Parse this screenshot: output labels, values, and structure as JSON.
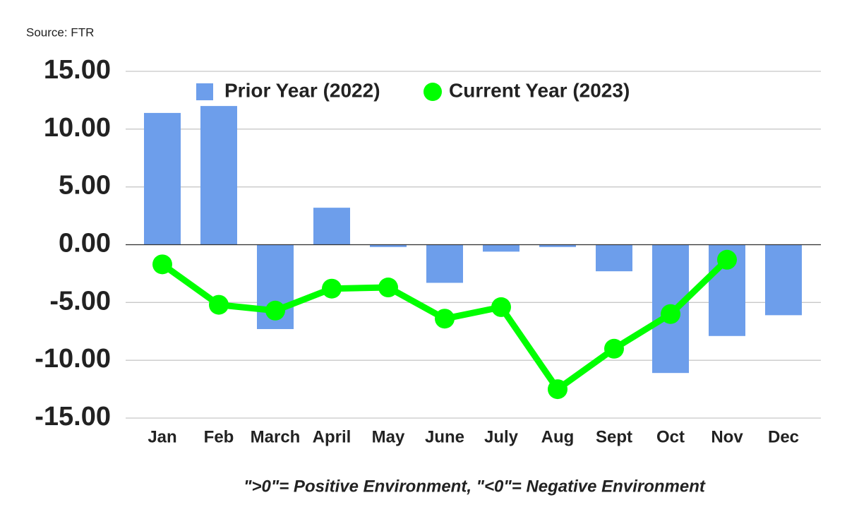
{
  "chart_data": {
    "type": "combo",
    "source": "Source: FTR",
    "note": "\">0\"= Positive Environment, \"<0\"= Negative Environment",
    "categories": [
      "Jan",
      "Feb",
      "March",
      "April",
      "May",
      "June",
      "July",
      "Aug",
      "Sept",
      "Oct",
      "Nov",
      "Dec"
    ],
    "series": [
      {
        "name": "Prior Year (2022)",
        "type": "bar",
        "color": "#6d9eeb",
        "values": [
          11.4,
          12.0,
          -7.3,
          3.2,
          -0.2,
          -3.3,
          -0.6,
          -0.2,
          -2.3,
          -11.1,
          -7.9,
          -6.1
        ]
      },
      {
        "name": "Current Year (2023)",
        "type": "line",
        "color": "#00ff00",
        "values": [
          -1.7,
          -5.2,
          -5.7,
          -3.8,
          -3.7,
          -6.4,
          -5.4,
          -12.5,
          -9.0,
          -6.0,
          -1.3,
          null
        ]
      }
    ],
    "ylim": [
      -15,
      15
    ],
    "yticks": [
      {
        "value": -15,
        "label": "-15.00"
      },
      {
        "value": -10,
        "label": "-10.00"
      },
      {
        "value": -5,
        "label": "-5.00"
      },
      {
        "value": 0,
        "label": "0.00"
      },
      {
        "value": 5,
        "label": "5.00"
      },
      {
        "value": 10,
        "label": "10.00"
      },
      {
        "value": 15,
        "label": "15.00"
      }
    ],
    "grid": true,
    "legend": "top"
  }
}
